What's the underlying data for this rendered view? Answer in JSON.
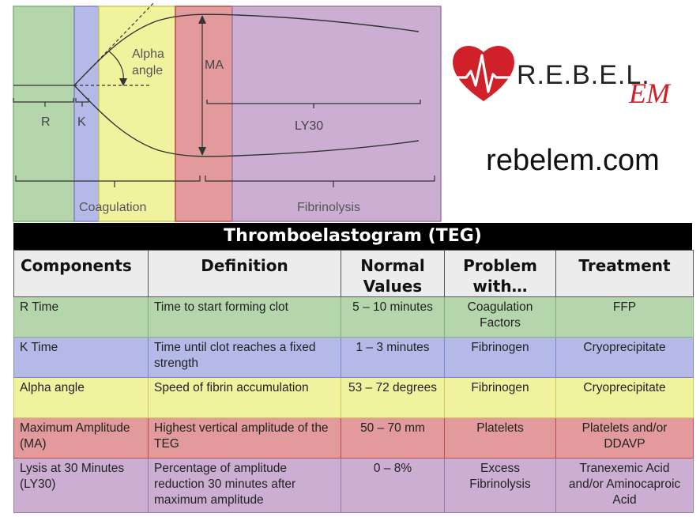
{
  "diagram": {
    "labels": {
      "r": "R",
      "k": "K",
      "alpha_angle_line1": "Alpha",
      "alpha_angle_line2": "angle",
      "ma": "MA",
      "ly30": "LY30",
      "coagulation": "Coagulation",
      "fibrinolysis": "Fibrinolysis"
    },
    "colors": {
      "green": "#b5d6ad",
      "blue": "#b4b9e8",
      "yellow": "#f1f29e",
      "red": "#e39a9c",
      "purple": "#cbaed2"
    }
  },
  "logo": {
    "text": "R.E.B.E.L.",
    "script": "EM",
    "icon": "heart-ecg-icon",
    "heart_color": "#d0202a"
  },
  "site": "rebelem.com",
  "table": {
    "title": "Thromboelastogram (TEG)",
    "headers": [
      "Components",
      "Definition",
      "Normal Values",
      "Problem with…",
      "Treatment"
    ],
    "rows": [
      {
        "component": "R Time",
        "definition": "Time to start forming clot",
        "normal": "5 – 10 minutes",
        "problem": "Coagulation Factors",
        "treatment": "FFP"
      },
      {
        "component": "K Time",
        "definition": "Time until clot reaches a fixed strength",
        "normal": "1 – 3 minutes",
        "problem": "Fibrinogen",
        "treatment": "Cryoprecipitate"
      },
      {
        "component": "Alpha angle",
        "definition": "Speed of fibrin accumulation",
        "normal": "53 – 72 degrees",
        "problem": "Fibrinogen",
        "treatment": "Cryoprecipitate"
      },
      {
        "component": "Maximum Amplitude (MA)",
        "definition": "Highest vertical amplitude of the TEG",
        "normal": "50 – 70 mm",
        "problem": "Platelets",
        "treatment": "Platelets and/or DDAVP"
      },
      {
        "component": "Lysis at 30 Minutes (LY30)",
        "definition": "Percentage of amplitude reduction 30 minutes after maximum amplitude",
        "normal": "0 – 8%",
        "problem": "Excess Fibrinolysis",
        "treatment": "Tranexemic Acid and/or Aminocaproic Acid"
      }
    ]
  }
}
